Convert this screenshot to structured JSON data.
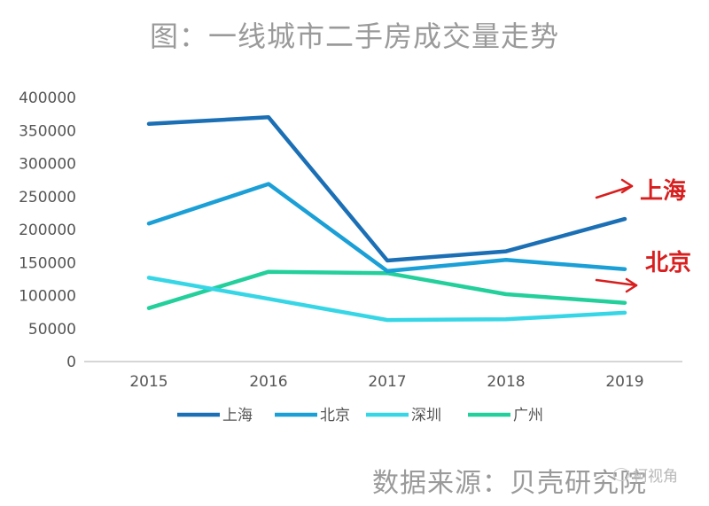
{
  "title": "图：一线城市二手房成交量走势",
  "source": "数据来源：贝壳研究院",
  "watermark": "柯视角",
  "chart_data": {
    "type": "line",
    "x": [
      "2015",
      "2016",
      "2017",
      "2018",
      "2019"
    ],
    "ylim": [
      0,
      400000
    ],
    "yticks": [
      "0",
      "50000",
      "100000",
      "150000",
      "200000",
      "250000",
      "300000",
      "350000",
      "400000"
    ],
    "grid": false,
    "legend_position": "bottom",
    "series": [
      {
        "name": "上海",
        "color": "#1b6fb5",
        "values": [
          360000,
          370000,
          153000,
          167000,
          216000
        ]
      },
      {
        "name": "北京",
        "color": "#1a9fd6",
        "values": [
          209000,
          269000,
          137000,
          154000,
          140000
        ]
      },
      {
        "name": "深圳",
        "color": "#37d6e6",
        "values": [
          127000,
          95000,
          63000,
          64000,
          74000
        ]
      },
      {
        "name": "广州",
        "color": "#23cf9a",
        "values": [
          81000,
          136000,
          134000,
          102000,
          89000
        ]
      }
    ],
    "annotations": [
      {
        "text": "上海",
        "color": "#d81e1e"
      },
      {
        "text": "北京",
        "color": "#d81e1e"
      }
    ]
  }
}
